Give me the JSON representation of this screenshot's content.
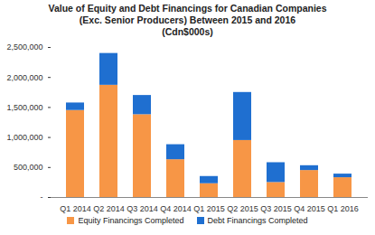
{
  "chart_data": {
    "type": "bar",
    "stacked": true,
    "grid": false,
    "legend": "bottom",
    "title": [
      "Value of Equity and Debt Financings for Canadian Companies",
      "(Exc. Senior Producers) Between 2015 and 2016",
      "(Cdn$000s)"
    ],
    "categories": [
      "Q1 2014",
      "Q2 2014",
      "Q3 2014",
      "Q4 2014",
      "Q1 2015",
      "Q2 2015",
      "Q3 2015",
      "Q4 2015",
      "Q1 2016"
    ],
    "series": [
      {
        "name": "Equity Financings Completed",
        "color": "#f79646",
        "values": [
          1450000,
          1870000,
          1380000,
          630000,
          230000,
          950000,
          250000,
          450000,
          330000
        ]
      },
      {
        "name": "Debt Financings Completed",
        "color": "#1f6fd0",
        "values": [
          125000,
          530000,
          320000,
          250000,
          120000,
          800000,
          330000,
          80000,
          60000
        ]
      }
    ],
    "ylim": [
      0,
      2500000
    ],
    "yticks": [
      {
        "value": 0,
        "label": "-"
      },
      {
        "value": 500000,
        "label": "500,000"
      },
      {
        "value": 1000000,
        "label": "1,000,000"
      },
      {
        "value": 1500000,
        "label": "1,500,000"
      },
      {
        "value": 2000000,
        "label": "2,000,000"
      },
      {
        "value": 2500000,
        "label": "2,500,000"
      }
    ]
  }
}
